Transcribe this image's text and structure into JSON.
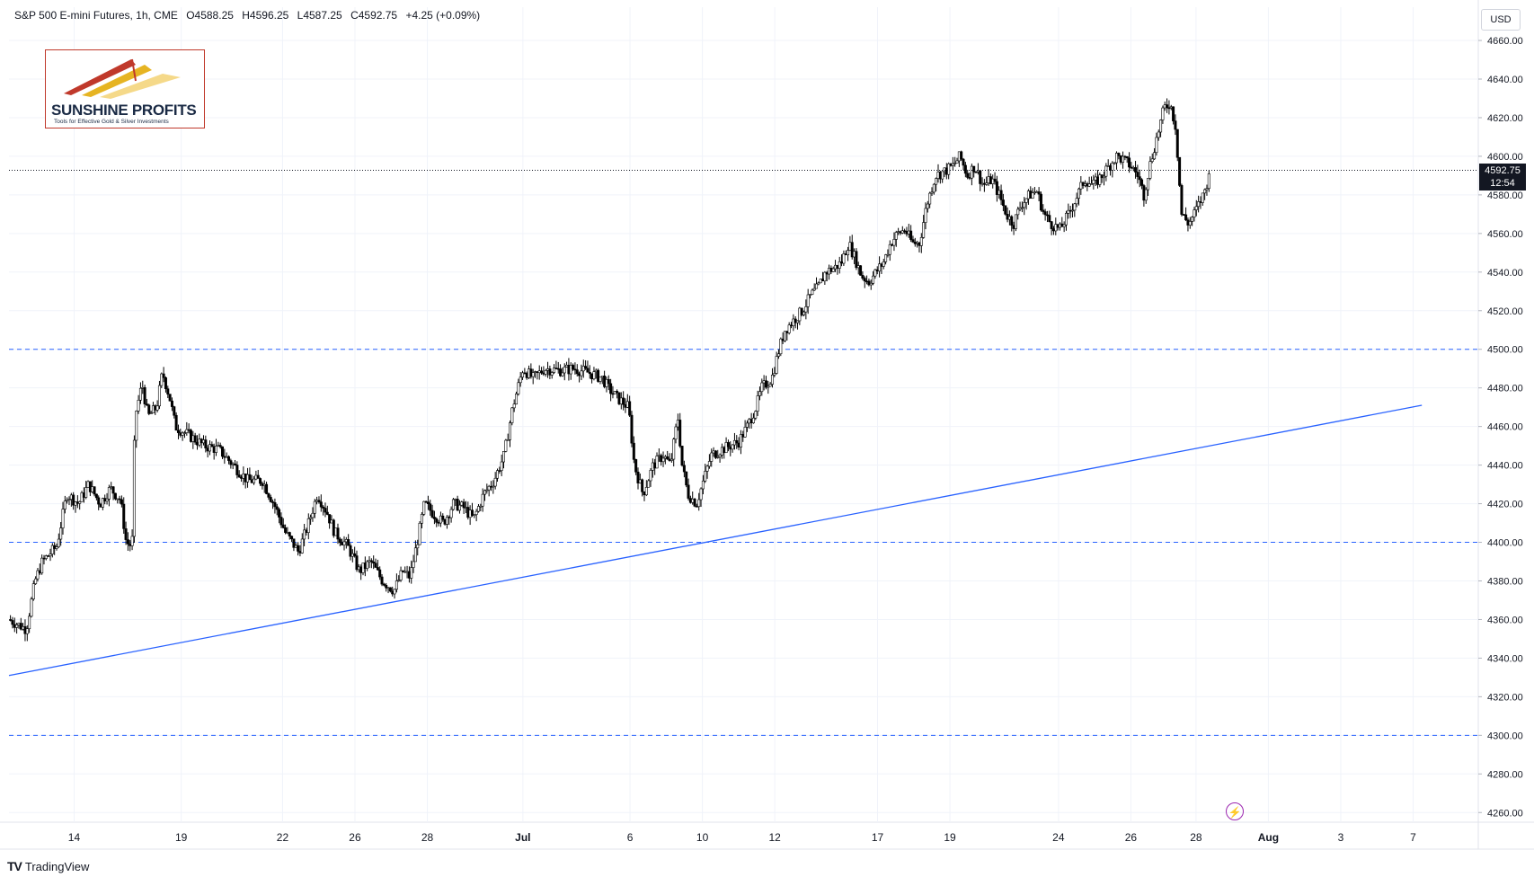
{
  "header": {
    "symbol": "S&P 500 E-mini Futures, 1h, CME",
    "open": "O4588.25",
    "high": "H4596.25",
    "low": "L4587.25",
    "close": "C4592.75",
    "change": "+4.25 (+0.09%)"
  },
  "currency": "USD",
  "logo": {
    "name": "SUNSHINE PROFITS",
    "tagline": "Tools for Effective Gold & Silver Investments"
  },
  "last_price": {
    "value": "4592.75",
    "countdown": "12:54"
  },
  "footer": {
    "brand": "TradingView"
  },
  "colors": {
    "candle": "#000000",
    "level_line": "#2962ff",
    "trend_line": "#2962ff",
    "price_tag_bg": "#131722",
    "logo_border": "#c0392b"
  },
  "chart_data": {
    "type": "candlestick",
    "instrument": "S&P 500 E-mini Futures",
    "interval": "1h",
    "exchange": "CME",
    "ylim": [
      4255,
      4667
    ],
    "y_ticks": [
      4260,
      4280,
      4300,
      4320,
      4340,
      4360,
      4380,
      4400,
      4420,
      4440,
      4460,
      4480,
      4500,
      4520,
      4540,
      4560,
      4580,
      4600,
      4620,
      4640,
      4660
    ],
    "y_tick_labels": [
      "4260.00",
      "4280.00",
      "4300.00",
      "4320.00",
      "4340.00",
      "4360.00",
      "4380.00",
      "4400.00",
      "4420.00",
      "4440.00",
      "4460.00",
      "4480.00",
      "4500.00",
      "4520.00",
      "4540.00",
      "4560.00",
      "4580.00",
      "4600.00",
      "4620.00",
      "4640.00",
      "4660.00"
    ],
    "x_labels": [
      {
        "label": "14",
        "t": 4.5
      },
      {
        "label": "19",
        "t": 11.9
      },
      {
        "label": "22",
        "t": 18.9
      },
      {
        "label": "26",
        "t": 23.9
      },
      {
        "label": "28",
        "t": 28.9
      },
      {
        "label": "Jul",
        "t": 35.5
      },
      {
        "label": "6",
        "t": 42.9
      },
      {
        "label": "10",
        "t": 47.9
      },
      {
        "label": "12",
        "t": 52.9
      },
      {
        "label": "17",
        "t": 60.0
      },
      {
        "label": "19",
        "t": 65.0
      },
      {
        "label": "24",
        "t": 72.5
      },
      {
        "label": "26",
        "t": 77.5
      },
      {
        "label": "28",
        "t": 82.0
      },
      {
        "label": "Aug",
        "t": 87.0
      },
      {
        "label": "3",
        "t": 92.0
      },
      {
        "label": "7",
        "t": 97.0
      }
    ],
    "x_range": [
      0,
      101.5
    ],
    "price_path": [
      [
        0,
        4360
      ],
      [
        1.2,
        4355
      ],
      [
        1.8,
        4380
      ],
      [
        2.3,
        4390
      ],
      [
        3.3,
        4398
      ],
      [
        4,
        4425
      ],
      [
        4.8,
        4420
      ],
      [
        5.5,
        4430
      ],
      [
        6.3,
        4420
      ],
      [
        7,
        4428
      ],
      [
        7.7,
        4422
      ],
      [
        8.1,
        4400
      ],
      [
        8.5,
        4398
      ],
      [
        8.7,
        4465
      ],
      [
        9.2,
        4482
      ],
      [
        9.6,
        4465
      ],
      [
        10.2,
        4470
      ],
      [
        10.6,
        4488
      ],
      [
        11.1,
        4475
      ],
      [
        11.5,
        4460
      ],
      [
        12.5,
        4455
      ],
      [
        13.5,
        4450
      ],
      [
        14.5,
        4448
      ],
      [
        15.5,
        4440
      ],
      [
        16.5,
        4432
      ],
      [
        17.5,
        4432
      ],
      [
        18.3,
        4420
      ],
      [
        19.1,
        4405
      ],
      [
        20,
        4395
      ],
      [
        20.7,
        4410
      ],
      [
        21.3,
        4425
      ],
      [
        22,
        4415
      ],
      [
        22.5,
        4405
      ],
      [
        23.4,
        4398
      ],
      [
        24.2,
        4385
      ],
      [
        25,
        4390
      ],
      [
        25.8,
        4380
      ],
      [
        26.6,
        4375
      ],
      [
        27.2,
        4385
      ],
      [
        27.7,
        4382
      ],
      [
        28.2,
        4400
      ],
      [
        28.7,
        4420
      ],
      [
        29.3,
        4415
      ],
      [
        30,
        4410
      ],
      [
        30.7,
        4420
      ],
      [
        31.4,
        4418
      ],
      [
        32.1,
        4412
      ],
      [
        32.8,
        4425
      ],
      [
        33.5,
        4432
      ],
      [
        34.2,
        4445
      ],
      [
        34.8,
        4470
      ],
      [
        35.5,
        4490
      ],
      [
        36.2,
        4485
      ],
      [
        37,
        4490
      ],
      [
        38,
        4489
      ],
      [
        39,
        4490
      ],
      [
        40,
        4488
      ],
      [
        41,
        4485
      ],
      [
        41.4,
        4480
      ],
      [
        42,
        4475
      ],
      [
        42.8,
        4470
      ],
      [
        43.2,
        4440
      ],
      [
        43.8,
        4425
      ],
      [
        44.5,
        4440
      ],
      [
        45.2,
        4445
      ],
      [
        45.7,
        4440
      ],
      [
        46.2,
        4465
      ],
      [
        46.5,
        4440
      ],
      [
        46.9,
        4425
      ],
      [
        47.5,
        4420
      ],
      [
        47.9,
        4430
      ],
      [
        48.5,
        4445
      ],
      [
        49.2,
        4448
      ],
      [
        49.8,
        4450
      ],
      [
        50.4,
        4452
      ],
      [
        51,
        4460
      ],
      [
        51.6,
        4470
      ],
      [
        52,
        4480
      ],
      [
        52.7,
        4485
      ],
      [
        53.2,
        4500
      ],
      [
        53.6,
        4510
      ],
      [
        54.2,
        4515
      ],
      [
        54.8,
        4520
      ],
      [
        55.4,
        4528
      ],
      [
        55.9,
        4532
      ],
      [
        56.4,
        4540
      ],
      [
        57,
        4542
      ],
      [
        57.5,
        4545
      ],
      [
        58,
        4555
      ],
      [
        58.4,
        4548
      ],
      [
        58.9,
        4538
      ],
      [
        59.4,
        4535
      ],
      [
        59.9,
        4540
      ],
      [
        60.4,
        4545
      ],
      [
        60.9,
        4555
      ],
      [
        61.4,
        4560
      ],
      [
        61.9,
        4562
      ],
      [
        62.4,
        4555
      ],
      [
        62.9,
        4555
      ],
      [
        63.4,
        4575
      ],
      [
        64,
        4590
      ],
      [
        64.6,
        4592
      ],
      [
        65.2,
        4595
      ],
      [
        65.7,
        4600
      ],
      [
        66.2,
        4590
      ],
      [
        66.7,
        4595
      ],
      [
        67.3,
        4585
      ],
      [
        67.9,
        4588
      ],
      [
        68.4,
        4580
      ],
      [
        68.9,
        4570
      ],
      [
        69.4,
        4565
      ],
      [
        69.9,
        4575
      ],
      [
        70.5,
        4580
      ],
      [
        71,
        4582
      ],
      [
        71.5,
        4570
      ],
      [
        72,
        4565
      ],
      [
        72.6,
        4562
      ],
      [
        73.2,
        4570
      ],
      [
        73.7,
        4578
      ],
      [
        74.3,
        4588
      ],
      [
        74.9,
        4585
      ],
      [
        75.5,
        4590
      ],
      [
        76,
        4595
      ],
      [
        76.5,
        4600
      ],
      [
        77,
        4598
      ],
      [
        77.5,
        4595
      ],
      [
        78,
        4590
      ],
      [
        78.4,
        4580
      ],
      [
        78.8,
        4595
      ],
      [
        79.3,
        4610
      ],
      [
        79.8,
        4625
      ],
      [
        80.2,
        4628
      ],
      [
        80.6,
        4615
      ],
      [
        81,
        4570
      ],
      [
        81.5,
        4565
      ],
      [
        82,
        4572
      ],
      [
        82.5,
        4580
      ],
      [
        83,
        4592
      ]
    ],
    "horizontal_levels": [
      4500,
      4400,
      4300
    ],
    "trend_line": {
      "from": [
        0,
        4331
      ],
      "to": [
        97.6,
        4471
      ]
    },
    "last_close": 4592.75,
    "grid": true,
    "legend": "none"
  }
}
